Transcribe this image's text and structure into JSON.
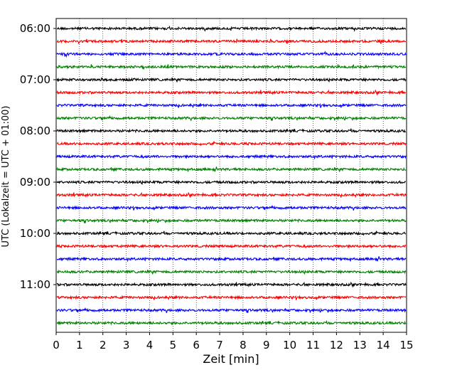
{
  "chart_data": {
    "type": "line",
    "subtype": "helicorder",
    "xlabel": "Zeit  [min]",
    "ylabel": "UTC (Lokalzeit = UTC + 01:00)",
    "xlim": [
      0,
      15
    ],
    "x_ticks": [
      0,
      1,
      2,
      3,
      4,
      5,
      6,
      7,
      8,
      9,
      10,
      11,
      12,
      13,
      14,
      15
    ],
    "y_tick_labels": [
      {
        "label": "06:00",
        "row": 0
      },
      {
        "label": "07:00",
        "row": 4
      },
      {
        "label": "08:00",
        "row": 8
      },
      {
        "label": "09:00",
        "row": 12
      },
      {
        "label": "10:00",
        "row": 16
      },
      {
        "label": "11:00",
        "row": 20
      }
    ],
    "row_minutes": 15,
    "start_time": "06:00",
    "traces": 24,
    "trace_colors": [
      "#000000",
      "#ff0000",
      "#0000ff",
      "#008000"
    ],
    "vertical_grid": "dotted",
    "grid": true
  }
}
